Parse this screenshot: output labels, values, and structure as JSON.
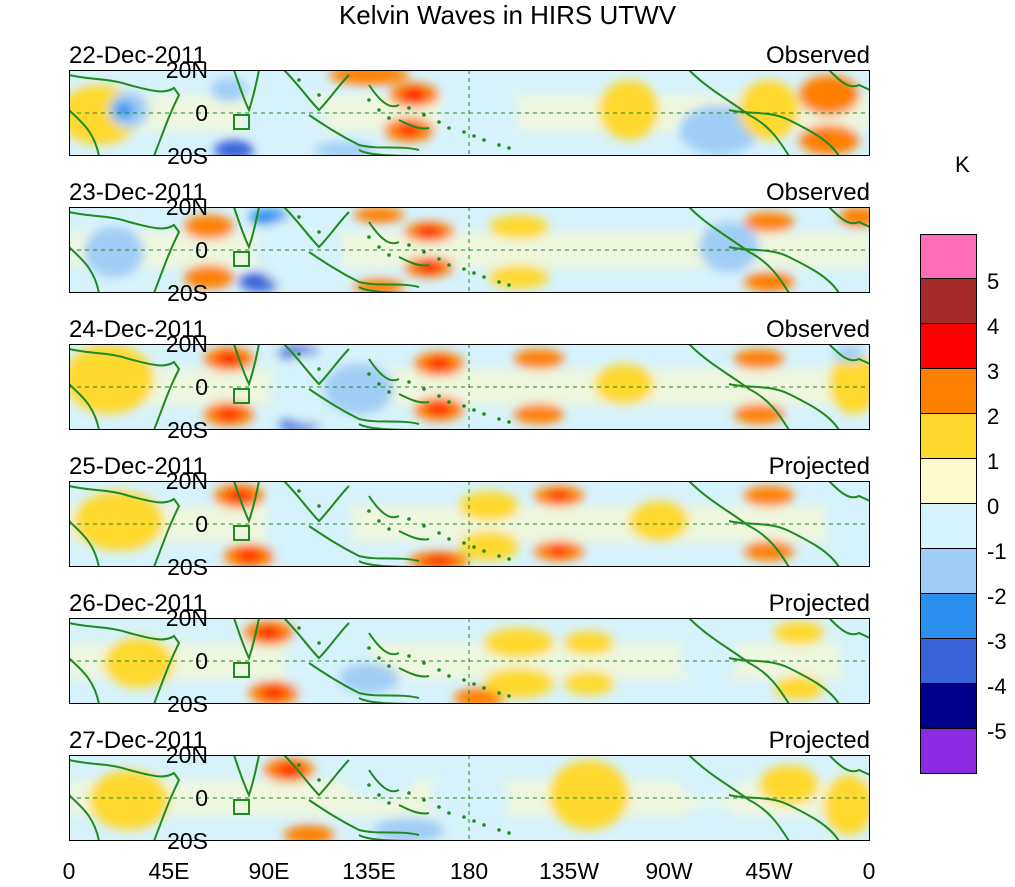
{
  "title": "Kelvin Waves in HIRS UTWV",
  "panels": [
    {
      "date": "22-Dec-2011",
      "tag": "Observed"
    },
    {
      "date": "23-Dec-2011",
      "tag": "Observed"
    },
    {
      "date": "24-Dec-2011",
      "tag": "Observed"
    },
    {
      "date": "25-Dec-2011",
      "tag": "Projected"
    },
    {
      "date": "26-Dec-2011",
      "tag": "Projected"
    },
    {
      "date": "27-Dec-2011",
      "tag": "Projected"
    }
  ],
  "lat_labels": [
    "20N",
    "0",
    "20S"
  ],
  "lon_labels": [
    "0",
    "45E",
    "90E",
    "135E",
    "180",
    "135W",
    "90W",
    "45W",
    "0"
  ],
  "colorbar": {
    "units": "K",
    "labels": [
      "5",
      "4",
      "3",
      "2",
      "1",
      "0",
      "-1",
      "-2",
      "-3",
      "-4",
      "-5"
    ],
    "colors": [
      "#ff6eb4",
      "#a52a2a",
      "#ff0000",
      "#ff7f00",
      "#ffd92e",
      "#fffacd",
      "#d6f2fa",
      "#9fcdf5",
      "#2b8ff0",
      "#3b63d9",
      "#00008b",
      "#8a2be2"
    ]
  }
}
